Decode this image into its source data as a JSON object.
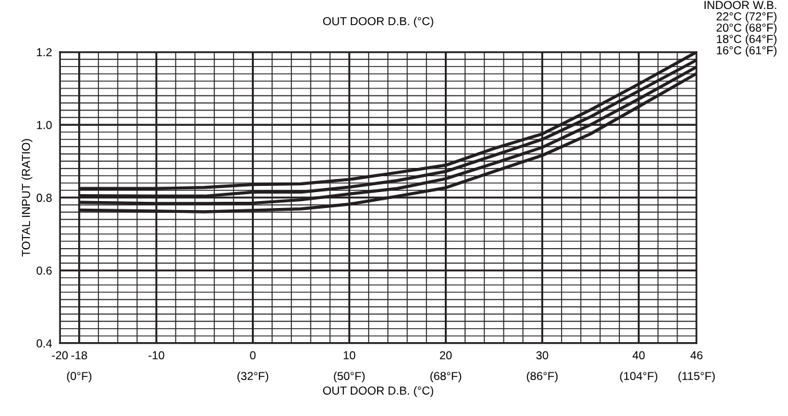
{
  "chart_data": {
    "type": "line",
    "title": "OUT DOOR D.B. (°C)",
    "xlabel": "OUT DOOR D.B. (°C)",
    "ylabel": "TOTAL INPUT (RATIO)",
    "legend_title": "INDOOR W.B.",
    "x": [
      -18,
      -10,
      -5,
      0,
      5,
      10,
      15,
      20,
      25,
      30,
      35,
      40,
      46
    ],
    "series": [
      {
        "name": "22°C (72°F)",
        "color": "#231f20",
        "values": [
          0.825,
          0.825,
          0.828,
          0.836,
          0.838,
          0.85,
          0.869,
          0.889,
          0.935,
          0.975,
          1.041,
          1.112,
          1.2
        ]
      },
      {
        "name": "20°C (68°F)",
        "color": "#231f20",
        "values": [
          0.805,
          0.804,
          0.804,
          0.815,
          0.815,
          0.829,
          0.847,
          0.872,
          0.916,
          0.96,
          1.022,
          1.093,
          1.178
        ]
      },
      {
        "name": "18°C (64°F)",
        "color": "#231f20",
        "values": [
          0.787,
          0.784,
          0.784,
          0.785,
          0.794,
          0.81,
          0.825,
          0.852,
          0.894,
          0.938,
          1.0,
          1.071,
          1.159
        ]
      },
      {
        "name": "16°C (61°F)",
        "color": "#231f20",
        "values": [
          0.766,
          0.763,
          0.761,
          0.765,
          0.769,
          0.782,
          0.804,
          0.827,
          0.872,
          0.916,
          0.975,
          1.05,
          1.141
        ]
      }
    ],
    "xlim": [
      -20,
      46
    ],
    "ylim": [
      0.4,
      1.2
    ],
    "xticks": [
      -20,
      {
        "value": -18,
        "label": "-18\n(0°F)"
      },
      -10,
      {
        "value": 0,
        "label": "0\n(32°F)"
      },
      {
        "value": 10,
        "label": "10\n(50°F)"
      },
      {
        "value": 20,
        "label": "20\n(68°F)"
      },
      {
        "value": 30,
        "label": "30\n(86°F)"
      },
      {
        "value": 40,
        "label": "40\n(104°F)"
      },
      {
        "value": 46,
        "label": "46\n(115°F)"
      }
    ],
    "yticks": [
      0.4,
      0.6,
      0.8,
      {
        "value": 1.0,
        "label": "1.0"
      },
      1.2
    ],
    "grid": true,
    "legend": "top right",
    "marker": "none",
    "line_style": "solid"
  }
}
